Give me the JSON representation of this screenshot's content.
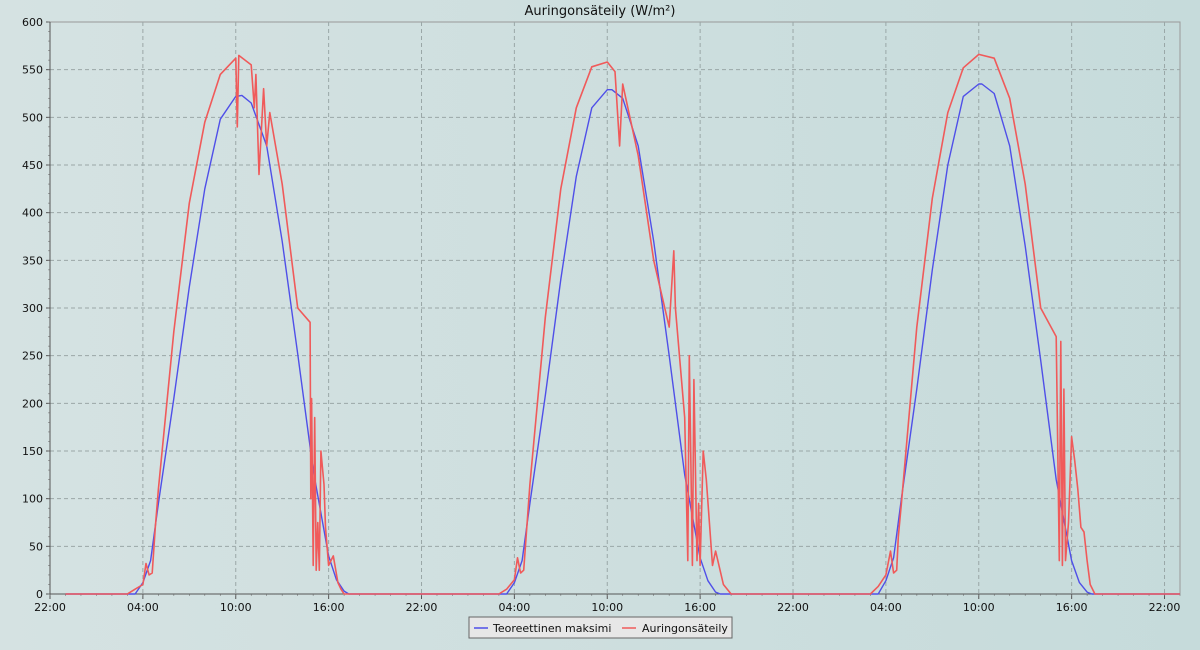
{
  "chart_data": {
    "type": "line",
    "title": "Auringonsäteily (W/m²)",
    "xlabel": "",
    "ylabel": "",
    "ylim": [
      0,
      600
    ],
    "yticks": [
      0,
      50,
      100,
      150,
      200,
      250,
      300,
      350,
      400,
      450,
      500,
      550,
      600
    ],
    "xlim_hours": [
      -2,
      71
    ],
    "xticks": [
      {
        "hour": -2,
        "label": "22:00"
      },
      {
        "hour": 4,
        "label": "04:00"
      },
      {
        "hour": 10,
        "label": "10:00"
      },
      {
        "hour": 16,
        "label": "16:00"
      },
      {
        "hour": 22,
        "label": "22:00"
      },
      {
        "hour": 28,
        "label": "04:00"
      },
      {
        "hour": 34,
        "label": "10:00"
      },
      {
        "hour": 40,
        "label": "16:00"
      },
      {
        "hour": 46,
        "label": "22:00"
      },
      {
        "hour": 52,
        "label": "04:00"
      },
      {
        "hour": 58,
        "label": "10:00"
      },
      {
        "hour": 64,
        "label": "16:00"
      },
      {
        "hour": 70,
        "label": "22:00"
      }
    ],
    "grid": true,
    "legend_position": "bottom-center",
    "series": [
      {
        "name": "Teoreettinen maksimi",
        "color": "#4f4fe8",
        "x": [
          -1,
          3,
          3.5,
          4,
          4.5,
          5,
          6,
          7,
          8,
          9,
          10,
          10.4,
          11,
          12,
          13,
          14,
          15,
          16,
          16.5,
          17,
          17.3,
          17.5,
          22,
          27,
          27.5,
          28,
          28.5,
          29,
          30,
          31,
          32,
          33,
          34,
          34.3,
          35,
          36,
          37,
          38,
          39,
          40,
          40.5,
          41,
          41.3,
          41.5,
          46,
          51,
          51.5,
          52,
          52.5,
          53,
          54,
          55,
          56,
          57,
          58,
          58.2,
          59,
          60,
          61,
          62,
          63,
          64,
          64.5,
          65,
          65.3,
          65.5,
          71
        ],
        "y": [
          0,
          0,
          0,
          12,
          35,
          95,
          205,
          322,
          425,
          498,
          522,
          523,
          515,
          470,
          370,
          252,
          130,
          40,
          15,
          3,
          0,
          0,
          0,
          0,
          0,
          12,
          35,
          95,
          208,
          330,
          438,
          510,
          529,
          529,
          520,
          470,
          370,
          250,
          125,
          38,
          14,
          2,
          0,
          0,
          0,
          0,
          0,
          14,
          38,
          100,
          215,
          340,
          450,
          522,
          535,
          535,
          525,
          470,
          365,
          245,
          120,
          35,
          12,
          2,
          0,
          0,
          0
        ]
      },
      {
        "name": "Auringonsäteily",
        "color": "#f05a5a",
        "x": [
          -1,
          3,
          3.5,
          4,
          4.2,
          4.4,
          4.6,
          4.8,
          5,
          6,
          7,
          8,
          9,
          10,
          10.1,
          10.2,
          11,
          11.2,
          11.3,
          11.5,
          11.8,
          12,
          12.2,
          13,
          14,
          14.8,
          14.85,
          14.9,
          15,
          15.1,
          15.2,
          15.3,
          15.4,
          15.5,
          15.7,
          15.8,
          16,
          16.3,
          16.6,
          16.8,
          17,
          17.5,
          18,
          22,
          27,
          27.5,
          28,
          28.2,
          28.4,
          28.6,
          28.8,
          29,
          30,
          31,
          32,
          33,
          34,
          34.5,
          34.8,
          35,
          35.2,
          36,
          37,
          38,
          38.3,
          38.4,
          39,
          39.2,
          39.3,
          39.5,
          39.6,
          39.8,
          39.9,
          40,
          40.2,
          40.4,
          40.6,
          40.8,
          41,
          41.5,
          42,
          46,
          51,
          51.5,
          52,
          52.3,
          52.5,
          52.7,
          52.8,
          53,
          54,
          55,
          56,
          57,
          58,
          59,
          60,
          61,
          62,
          63,
          63.2,
          63.3,
          63.4,
          63.5,
          63.6,
          63.8,
          64,
          64.2,
          64.4,
          64.6,
          64.8,
          65,
          65.2,
          65.5,
          66,
          71
        ],
        "y": [
          0,
          0,
          5,
          10,
          32,
          20,
          22,
          70,
          110,
          275,
          410,
          495,
          545,
          562,
          490,
          565,
          555,
          510,
          545,
          440,
          530,
          470,
          505,
          430,
          300,
          285,
          100,
          205,
          30,
          185,
          25,
          75,
          25,
          150,
          115,
          70,
          30,
          40,
          12,
          5,
          0,
          0,
          0,
          0,
          0,
          5,
          15,
          38,
          22,
          25,
          70,
          115,
          290,
          425,
          510,
          553,
          558,
          548,
          470,
          535,
          520,
          460,
          350,
          280,
          360,
          300,
          185,
          35,
          250,
          30,
          225,
          35,
          95,
          30,
          150,
          120,
          75,
          30,
          45,
          10,
          0,
          0,
          0,
          8,
          20,
          45,
          22,
          25,
          60,
          95,
          280,
          415,
          505,
          552,
          566,
          562,
          520,
          430,
          300,
          270,
          35,
          265,
          30,
          215,
          35,
          75,
          165,
          140,
          110,
          70,
          65,
          35,
          10,
          0,
          0,
          0
        ]
      }
    ]
  }
}
